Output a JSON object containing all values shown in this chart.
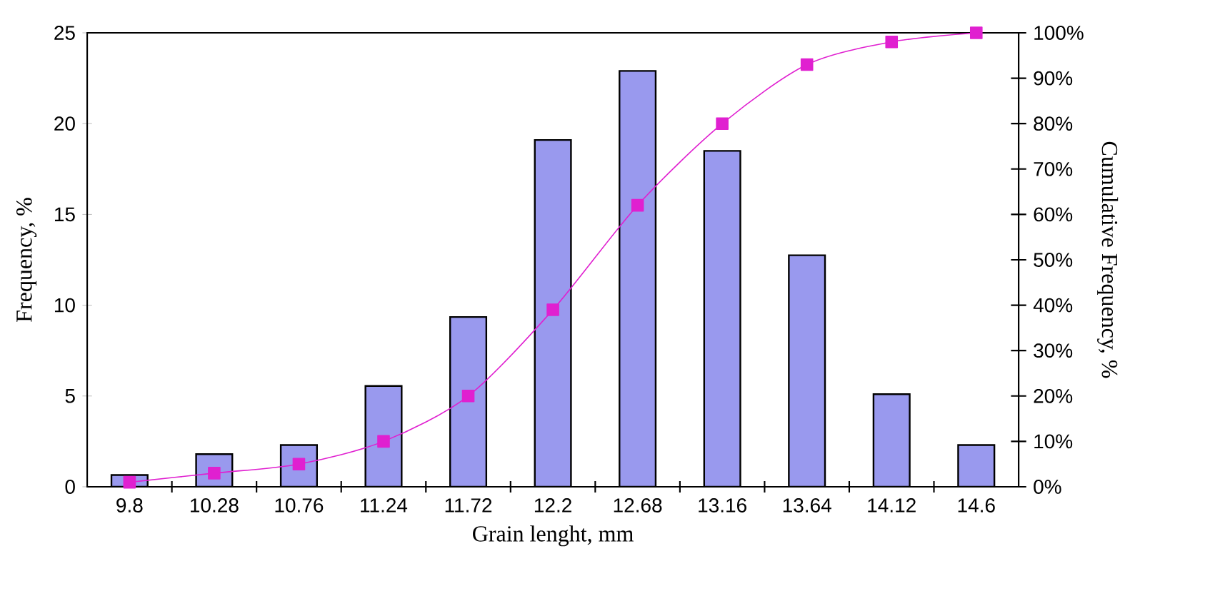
{
  "chart_data": {
    "type": "bar",
    "xlabel": "Grain lenght, mm",
    "ylabel": "Frequency, %",
    "y2label": "Cumulative Frequency, %",
    "categories": [
      "9.8",
      "10.28",
      "10.76",
      "11.24",
      "11.72",
      "12.2",
      "12.68",
      "13.16",
      "13.64",
      "14.12",
      "14.6"
    ],
    "series": [
      {
        "color": "#9999ee",
        "values": [
          0.65,
          1.8,
          2.3,
          5.55,
          9.35,
          19.1,
          22.9,
          18.5,
          12.75,
          5.1,
          2.3
        ]
      },
      {
        "type": "line",
        "axis": "y2",
        "color": "#e020d0",
        "values": [
          1,
          3,
          5,
          10,
          20,
          39,
          62,
          80,
          93,
          98,
          100
        ]
      }
    ],
    "ylim": [
      0,
      25
    ],
    "yticks": [
      0,
      5,
      10,
      15,
      20,
      25
    ],
    "y2lim": [
      0,
      100
    ],
    "y2ticks": [
      {
        "value": 0,
        "label": "0%"
      },
      {
        "value": 10,
        "label": "10%"
      },
      {
        "value": 20,
        "label": "20%"
      },
      {
        "value": 30,
        "label": "30%"
      },
      {
        "value": 40,
        "label": "40%"
      },
      {
        "value": 50,
        "label": "50%"
      },
      {
        "value": 60,
        "label": "60%"
      },
      {
        "value": 70,
        "label": "70%"
      },
      {
        "value": 80,
        "label": "80%"
      },
      {
        "value": 90,
        "label": "90%"
      },
      {
        "value": 100,
        "label": "100%"
      }
    ],
    "marker": "square",
    "line_style": "solid",
    "legend": false,
    "grid": false
  }
}
